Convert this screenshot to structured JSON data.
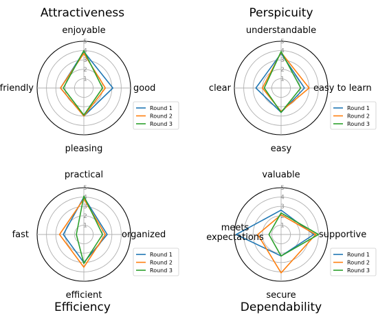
{
  "chart_data": [
    {
      "type": "radar",
      "title": "Attractiveness",
      "axes": [
        "enjoyable",
        "good",
        "pleasing",
        "friendly"
      ],
      "rlim": [
        0,
        5
      ],
      "rticks": [
        "1",
        "2",
        "3",
        "4",
        "5"
      ],
      "grid": true,
      "legend": "right",
      "series": [
        {
          "name": "Round 1",
          "color": "#1f77b4",
          "values": [
            3.9,
            3.1,
            3.0,
            2.5
          ]
        },
        {
          "name": "Round 2",
          "color": "#ff7f0e",
          "values": [
            3.7,
            2.3,
            3.0,
            2.5
          ]
        },
        {
          "name": "Round 3",
          "color": "#2ca02c",
          "values": [
            4.0,
            2.0,
            2.9,
            2.2
          ]
        }
      ]
    },
    {
      "type": "radar",
      "title": "Perspicuity",
      "axes": [
        "understandable",
        "easy to learn",
        "easy",
        "clear"
      ],
      "rlim": [
        0,
        5
      ],
      "rticks": [
        "1",
        "2",
        "3",
        "4",
        "5"
      ],
      "grid": true,
      "legend": "right",
      "series": [
        {
          "name": "Round 1",
          "color": "#1f77b4",
          "values": [
            3.7,
            2.5,
            2.6,
            2.7
          ]
        },
        {
          "name": "Round 2",
          "color": "#ff7f0e",
          "values": [
            3.8,
            3.0,
            2.5,
            2.0
          ]
        },
        {
          "name": "Round 3",
          "color": "#2ca02c",
          "values": [
            3.9,
            2.1,
            2.6,
            1.8
          ]
        }
      ]
    },
    {
      "type": "radar",
      "title": "Efficiency",
      "axes": [
        "practical",
        "organized",
        "efficient",
        "fast"
      ],
      "rlim": [
        0,
        5
      ],
      "rticks": [
        "1",
        "2",
        "3",
        "4",
        "5"
      ],
      "grid": true,
      "legend": "right",
      "series": [
        {
          "name": "Round 1",
          "color": "#1f77b4",
          "values": [
            4.0,
            2.5,
            3.0,
            2.2
          ]
        },
        {
          "name": "Round 2",
          "color": "#ff7f0e",
          "values": [
            3.8,
            2.3,
            3.5,
            2.6
          ]
        },
        {
          "name": "Round 3",
          "color": "#2ca02c",
          "values": [
            4.1,
            2.0,
            3.1,
            0.8
          ]
        }
      ]
    },
    {
      "type": "radar",
      "title": "Dependability",
      "axes": [
        "valuable",
        "supportive",
        "secure",
        "meets\nexpectations"
      ],
      "rlim": [
        0,
        5
      ],
      "rticks": [
        "1",
        "2",
        "3",
        "4",
        "5"
      ],
      "grid": true,
      "legend": "right",
      "series": [
        {
          "name": "Round 1",
          "color": "#1f77b4",
          "values": [
            2.6,
            3.5,
            2.3,
            4.8
          ]
        },
        {
          "name": "Round 2",
          "color": "#ff7f0e",
          "values": [
            2.1,
            3.7,
            4.1,
            2.5
          ]
        },
        {
          "name": "Round 3",
          "color": "#2ca02c",
          "values": [
            2.3,
            4.0,
            2.3,
            1.3
          ]
        }
      ]
    }
  ]
}
